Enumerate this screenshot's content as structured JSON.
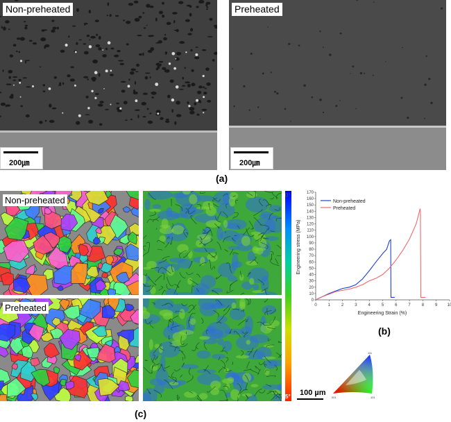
{
  "figure_a": {
    "left_label": "Non-preheated",
    "right_label": "Preheated",
    "left_scale": "200㎛",
    "right_scale": "200㎛",
    "caption": "(a)"
  },
  "figure_c": {
    "top_label": "Non-preheated",
    "bottom_label": "Preheated",
    "colorbar_top": "0°",
    "colorbar_bottom": "5°",
    "scale": "100 µm",
    "caption": "(c)",
    "triangle_labels": [
      "111",
      "001",
      "101"
    ]
  },
  "chart_caption": "(b)",
  "chart_data": {
    "type": "line",
    "title": "",
    "xlabel": "Engineering Strain (%)",
    "ylabel": "Engineering stress (MPa)",
    "xlim": [
      0,
      10
    ],
    "ylim": [
      0,
      170
    ],
    "xticks": [
      "0",
      "1",
      "2",
      "3",
      "4",
      "5",
      "6",
      "7",
      "8",
      "9",
      "10"
    ],
    "yticks": [
      "0",
      "10",
      "20",
      "30",
      "40",
      "50",
      "60",
      "70",
      "80",
      "90",
      "100",
      "110",
      "120",
      "130",
      "140",
      "150",
      "160",
      "170"
    ],
    "legend_position": "top-left",
    "series": [
      {
        "name": "Non-preheated",
        "color": "#1f3fd6",
        "x": [
          0,
          0.5,
          1.0,
          1.5,
          2.0,
          2.5,
          3.0,
          3.5,
          4.0,
          4.5,
          5.0,
          5.3,
          5.5,
          5.6,
          5.62,
          5.65,
          5.9
        ],
        "y": [
          0,
          5,
          10,
          14,
          18,
          20,
          24,
          33,
          46,
          60,
          73,
          80,
          93,
          95,
          4,
          4,
          4
        ]
      },
      {
        "name": "Preheated",
        "color": "#f06a6a",
        "x": [
          0,
          0.5,
          1.0,
          1.5,
          2.0,
          2.5,
          3.0,
          3.5,
          4.0,
          4.5,
          5.0,
          5.5,
          6.0,
          6.5,
          7.0,
          7.5,
          7.8,
          7.82,
          7.85,
          8.2
        ],
        "y": [
          0,
          5,
          9,
          13,
          15,
          17,
          20,
          24,
          30,
          34,
          40,
          50,
          63,
          78,
          96,
          120,
          144,
          140,
          4,
          4
        ]
      }
    ]
  }
}
